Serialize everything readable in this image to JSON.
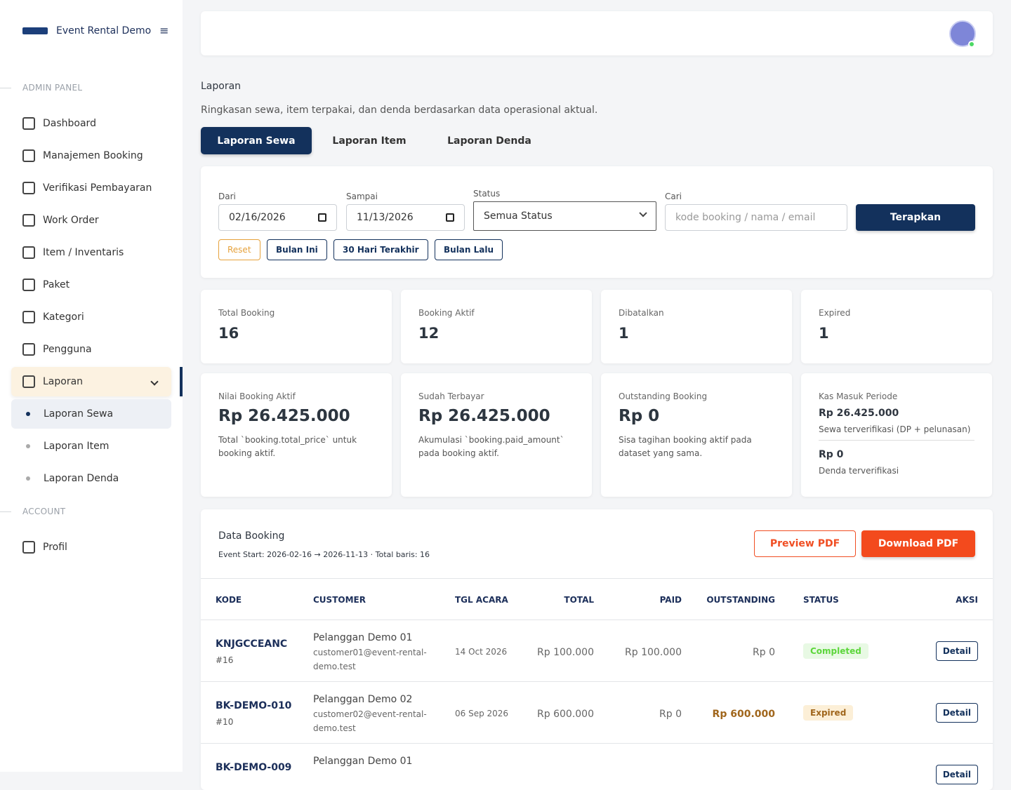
{
  "sidebar": {
    "brand": "Event Rental Demo",
    "sections": [
      {
        "title": "ADMIN PANEL",
        "items": [
          {
            "label": "Dashboard"
          },
          {
            "label": "Manajemen Booking"
          },
          {
            "label": "Verifikasi Pembayaran"
          },
          {
            "label": "Work Order"
          },
          {
            "label": "Item / Inventaris"
          },
          {
            "label": "Paket"
          },
          {
            "label": "Kategori"
          },
          {
            "label": "Pengguna"
          },
          {
            "label": "Laporan",
            "children": [
              "Laporan Sewa",
              "Laporan Item",
              "Laporan Denda"
            ]
          }
        ]
      },
      {
        "title": "ACCOUNT",
        "items": [
          {
            "label": "Profil"
          }
        ]
      }
    ]
  },
  "page": {
    "title": "Laporan",
    "subtitle": "Ringkasan sewa, item terpakai, dan denda berdasarkan data operasional aktual.",
    "tabs": [
      "Laporan Sewa",
      "Laporan Item",
      "Laporan Denda"
    ]
  },
  "filters": {
    "from": {
      "label": "Dari",
      "value": "02/16/2026"
    },
    "to": {
      "label": "Sampai",
      "value": "11/13/2026"
    },
    "status": {
      "label": "Status",
      "value": "Semua Status"
    },
    "search": {
      "label": "Cari",
      "placeholder": "kode booking / nama / email"
    },
    "apply": "Terapkan",
    "quick": [
      "Reset",
      "Bulan Ini",
      "30 Hari Terakhir",
      "Bulan Lalu"
    ]
  },
  "stats": [
    {
      "label": "Total Booking",
      "value": 16
    },
    {
      "label": "Booking Aktif",
      "value": 12
    },
    {
      "label": "Dibatalkan",
      "value": 1
    },
    {
      "label": "Expired",
      "value": 1
    }
  ],
  "money": [
    {
      "label": "Nilai Booking Aktif",
      "value": "Rp 26.425.000",
      "note": "Total `booking.total_price` untuk booking aktif."
    },
    {
      "label": "Sudah Terbayar",
      "value": "Rp 26.425.000",
      "note": "Akumulasi `booking.paid_amount` pada booking aktif."
    },
    {
      "label": "Outstanding Booking",
      "value": "Rp 0",
      "note": "Sisa tagihan booking aktif pada dataset yang sama."
    }
  ],
  "cash": {
    "label": "Kas Masuk Periode",
    "rent_value": "Rp 26.425.000",
    "rent_note": "Sewa terverifikasi (DP + pelunasan)",
    "fine_value": "Rp 0",
    "fine_note": "Denda terverifikasi"
  },
  "table": {
    "title": "Data Booking",
    "meta": "Event Start: 2026-02-16 → 2026-11-13 · Total baris: 16",
    "preview": "Preview PDF",
    "download": "Download PDF",
    "columns": [
      "KODE",
      "CUSTOMER",
      "TGL ACARA",
      "TOTAL",
      "PAID",
      "OUTSTANDING",
      "STATUS",
      "AKSI"
    ],
    "rows": [
      {
        "code": "KNJGCCEANC",
        "id": "#16",
        "name": "Pelanggan Demo 01",
        "email": "customer01@event-rental-demo.test",
        "date": "14 Oct 2026",
        "total": "Rp 100.000",
        "paid": "Rp 100.000",
        "outstanding": "Rp 0",
        "status": "Completed",
        "action": "Detail"
      },
      {
        "code": "BK-DEMO-010",
        "id": "#10",
        "name": "Pelanggan Demo 02",
        "email": "customer02@event-rental-demo.test",
        "date": "06 Sep 2026",
        "total": "Rp 600.000",
        "paid": "Rp 0",
        "outstanding": "Rp 600.000",
        "status": "Expired",
        "action": "Detail"
      },
      {
        "code": "BK-DEMO-009",
        "name": "Pelanggan Demo 01",
        "action": "Detail"
      }
    ]
  }
}
